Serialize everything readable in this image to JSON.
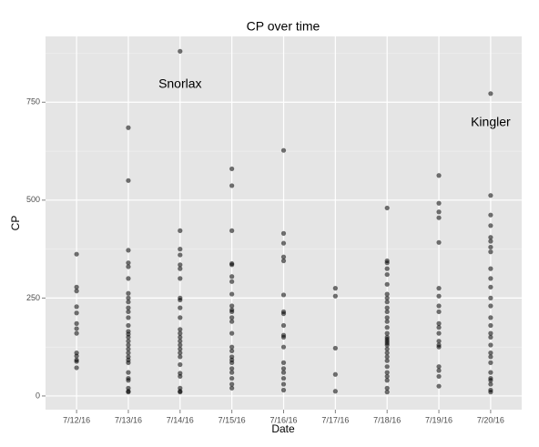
{
  "chart_data": {
    "type": "scatter",
    "title": "CP over time",
    "x_label": "Date",
    "y_label": "CP",
    "categories": [
      "7/12/16",
      "7/13/16",
      "7/14/16",
      "7/15/16",
      "7/16/16",
      "7/17/16",
      "7/18/16",
      "7/19/16",
      "7/20/16"
    ],
    "values": [
      [
        362,
        278,
        268,
        228,
        212,
        185,
        172,
        160,
        110,
        102,
        92,
        88,
        72
      ],
      [
        685,
        550,
        372,
        340,
        330,
        300,
        262,
        250,
        240,
        225,
        215,
        200,
        180,
        165,
        158,
        150,
        140,
        130,
        120,
        110,
        100,
        92,
        85,
        60,
        45,
        40,
        20,
        12,
        10
      ],
      [
        880,
        422,
        375,
        360,
        335,
        325,
        300,
        250,
        245,
        225,
        200,
        170,
        160,
        150,
        140,
        130,
        120,
        110,
        100,
        80,
        58,
        50,
        20,
        12,
        10
      ],
      [
        580,
        537,
        422,
        338,
        335,
        305,
        292,
        260,
        230,
        220,
        215,
        200,
        190,
        160,
        125,
        115,
        100,
        92,
        85,
        70,
        60,
        45,
        30,
        20
      ],
      [
        627,
        415,
        390,
        355,
        345,
        258,
        215,
        210,
        180,
        155,
        150,
        125,
        85,
        70,
        60,
        45,
        30,
        15
      ],
      [
        275,
        255,
        122,
        55,
        12
      ],
      [
        480,
        345,
        340,
        325,
        310,
        285,
        260,
        250,
        240,
        225,
        215,
        200,
        190,
        175,
        160,
        150,
        145,
        140,
        135,
        130,
        120,
        110,
        100,
        90,
        75,
        60,
        50,
        40,
        20,
        10
      ],
      [
        563,
        492,
        470,
        455,
        392,
        275,
        255,
        230,
        215,
        185,
        175,
        160,
        140,
        130,
        125,
        75,
        65,
        50,
        25
      ],
      [
        772,
        512,
        462,
        435,
        405,
        395,
        380,
        368,
        325,
        300,
        278,
        250,
        230,
        200,
        180,
        160,
        150,
        130,
        110,
        100,
        85,
        60,
        45,
        40,
        30,
        15,
        10
      ]
    ],
    "color": "#000000",
    "ylim": [
      -35,
      918
    ],
    "yticks": [
      0,
      250,
      500,
      750
    ],
    "minor_yticks": [
      125,
      375,
      625,
      875
    ],
    "grid": true,
    "annotations": [
      {
        "text": "Snorlax",
        "x": "7/14/16",
        "y": 795
      },
      {
        "text": "Kingler",
        "x": "7/20/16",
        "y": 698
      }
    ]
  }
}
